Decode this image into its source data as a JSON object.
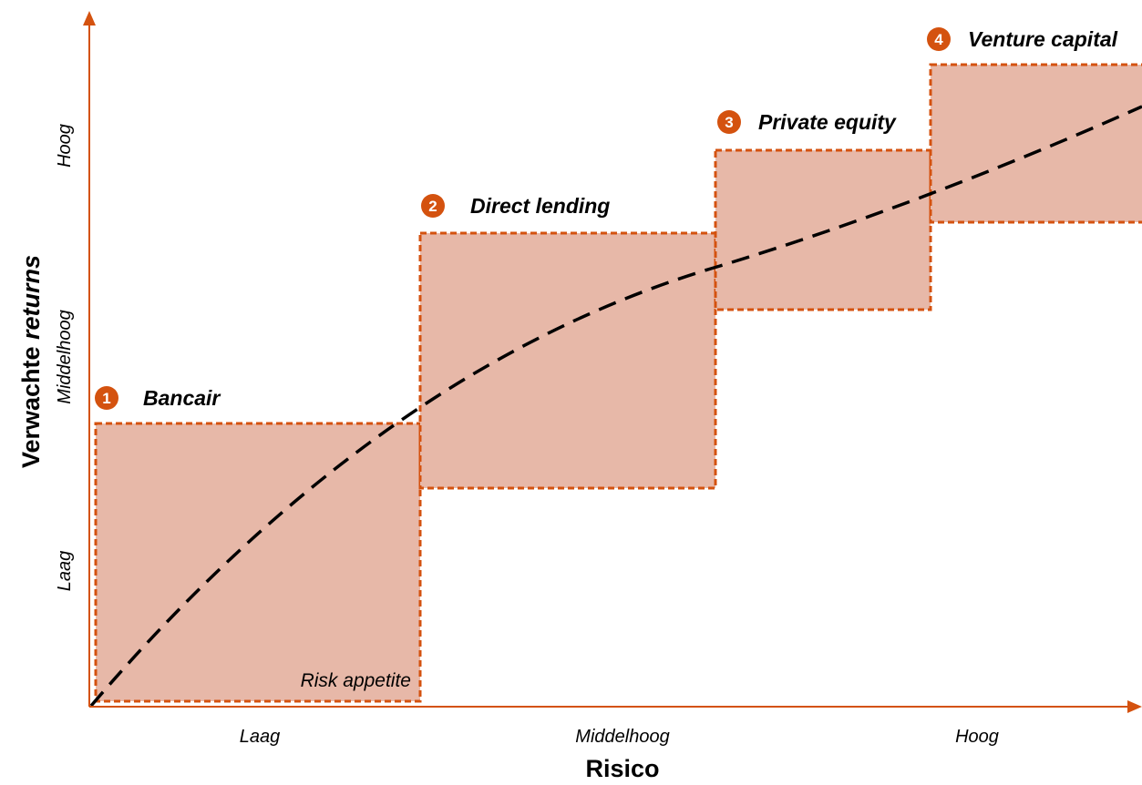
{
  "colors": {
    "axis": "#d4520f",
    "zone_fill": "#e7b8a8",
    "zone_border": "#d4520f",
    "badge": "#d4520f",
    "curve": "#000000"
  },
  "axes": {
    "x_title": "Risico",
    "y_title_regular": "Verwachte ",
    "y_title_italic": "returns",
    "x_ticks": [
      "Laag",
      "Middelhoog",
      "Hoog"
    ],
    "y_ticks": [
      "Laag",
      "Middelhoog",
      "Hoog"
    ]
  },
  "zones": [
    {
      "number": "1",
      "name": "Bancair"
    },
    {
      "number": "2",
      "name": "Direct lending"
    },
    {
      "number": "3",
      "name": "Private equity"
    },
    {
      "number": "4",
      "name": "Venture capital"
    }
  ],
  "annotation": "Risk appetite",
  "curve_style": "dashed"
}
